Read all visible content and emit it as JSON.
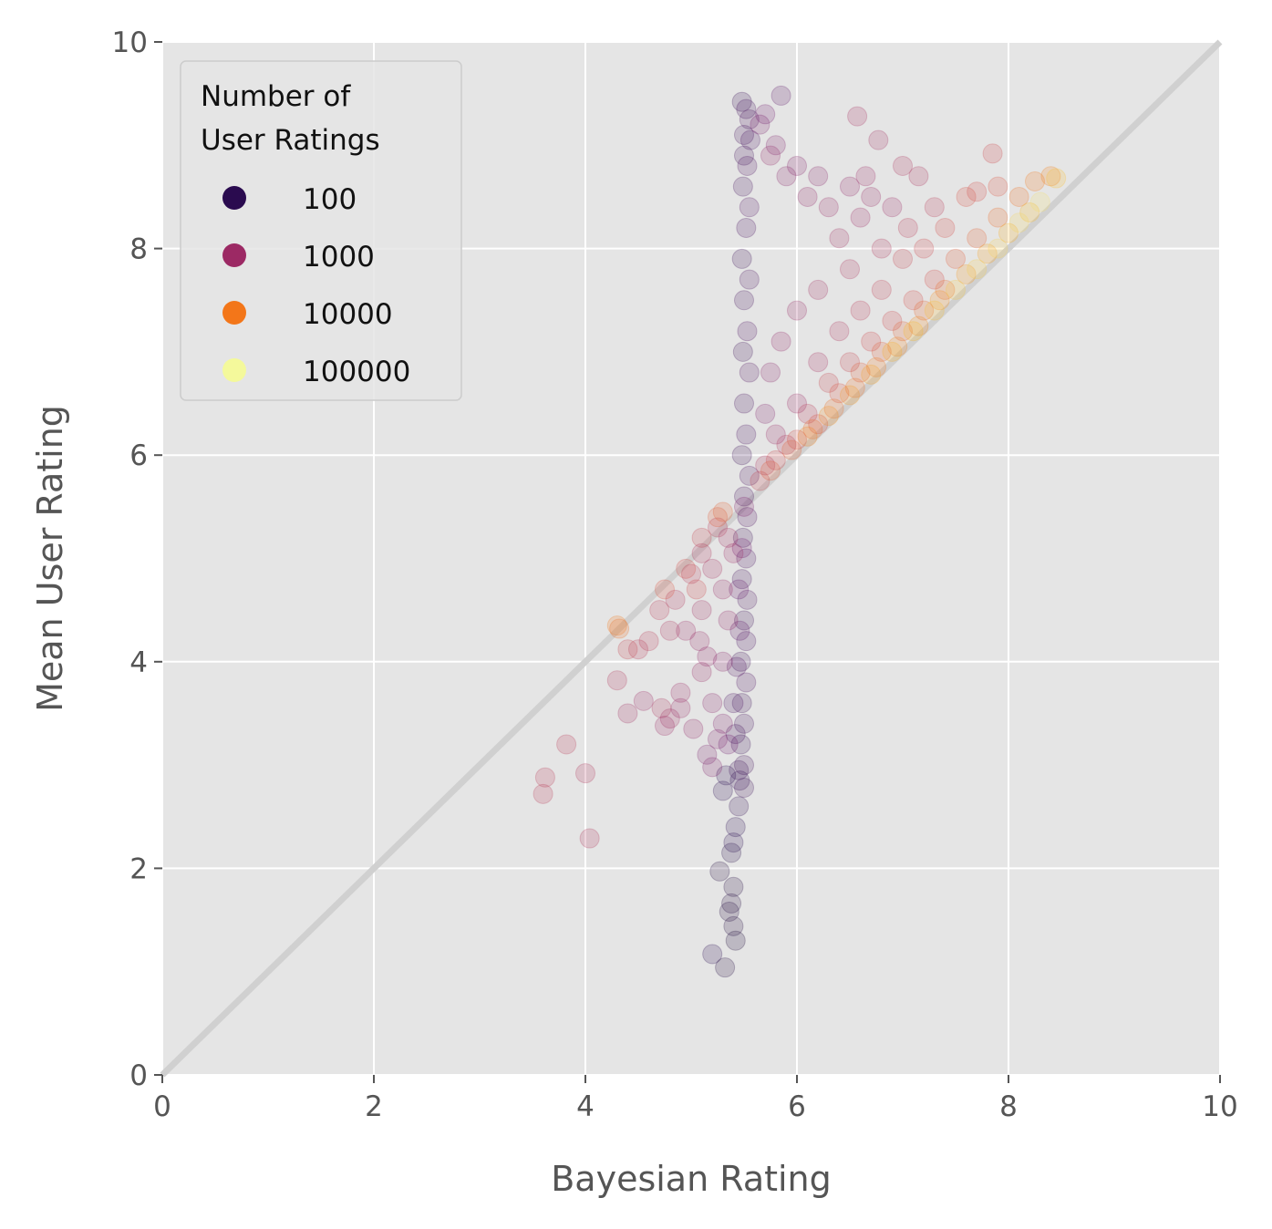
{
  "chart_data": {
    "type": "scatter",
    "title": "",
    "xlabel": "Bayesian Rating",
    "ylabel": "Mean User Rating",
    "xlim": [
      0,
      10
    ],
    "ylim": [
      0,
      10
    ],
    "xticks": [
      "0",
      "2",
      "4",
      "6",
      "8",
      "10"
    ],
    "yticks": [
      "0",
      "2",
      "4",
      "6",
      "8",
      "10"
    ],
    "grid": true,
    "reference_line": {
      "from": [
        0,
        0
      ],
      "to": [
        10,
        10
      ],
      "color": "#d0d0d0"
    },
    "legend": {
      "title_lines": [
        "Number of",
        "User Ratings"
      ],
      "placement": "top-left",
      "entries": [
        {
          "label": "100",
          "color": "#2a0b4f"
        },
        {
          "label": "1000",
          "color": "#9c2964"
        },
        {
          "label": "10000",
          "color": "#f37619"
        },
        {
          "label": "100000",
          "color": "#f4f99b"
        }
      ]
    },
    "colors": {
      "background": "#e5e5e5",
      "grid": "#ffffff",
      "tick_text": "#555555"
    },
    "colormap": [
      "#000004",
      "#2a0b4f",
      "#6a176e",
      "#9c2964",
      "#d24644",
      "#f37619",
      "#fbb61a",
      "#f4f99b"
    ],
    "point_alpha": 0.2,
    "points": [
      [
        5.48,
        9.42,
        55
      ],
      [
        5.52,
        9.35,
        70
      ],
      [
        5.55,
        9.25,
        90
      ],
      [
        5.5,
        9.1,
        70
      ],
      [
        5.56,
        9.05,
        80
      ],
      [
        5.5,
        8.9,
        65
      ],
      [
        5.53,
        8.8,
        85
      ],
      [
        5.49,
        8.6,
        70
      ],
      [
        5.55,
        8.4,
        100
      ],
      [
        5.52,
        8.2,
        80
      ],
      [
        5.48,
        7.9,
        60
      ],
      [
        5.55,
        7.7,
        90
      ],
      [
        5.5,
        7.5,
        70
      ],
      [
        5.53,
        7.2,
        85
      ],
      [
        5.49,
        7.0,
        60
      ],
      [
        5.55,
        6.8,
        95
      ],
      [
        5.5,
        6.5,
        70
      ],
      [
        5.52,
        6.2,
        80
      ],
      [
        5.48,
        6.0,
        60
      ],
      [
        5.55,
        5.8,
        90
      ],
      [
        5.5,
        5.6,
        70
      ],
      [
        5.53,
        5.4,
        85
      ],
      [
        5.49,
        5.2,
        60
      ],
      [
        5.52,
        5.0,
        80
      ],
      [
        5.48,
        4.8,
        70
      ],
      [
        5.53,
        4.6,
        90
      ],
      [
        5.5,
        4.4,
        60
      ],
      [
        5.52,
        4.2,
        80
      ],
      [
        5.47,
        4.0,
        60
      ],
      [
        5.52,
        3.8,
        85
      ],
      [
        5.48,
        3.6,
        60
      ],
      [
        5.5,
        3.4,
        70
      ],
      [
        5.47,
        3.2,
        55
      ],
      [
        5.5,
        3.0,
        65
      ],
      [
        5.46,
        2.85,
        50
      ],
      [
        5.5,
        2.78,
        60
      ],
      [
        5.45,
        2.6,
        45
      ],
      [
        5.42,
        2.4,
        40
      ],
      [
        5.4,
        2.25,
        40
      ],
      [
        5.38,
        2.15,
        35
      ],
      [
        5.27,
        1.97,
        30
      ],
      [
        5.4,
        1.82,
        30
      ],
      [
        5.38,
        1.66,
        30
      ],
      [
        5.36,
        1.58,
        30
      ],
      [
        5.4,
        1.44,
        30
      ],
      [
        5.42,
        1.3,
        25
      ],
      [
        5.2,
        1.17,
        40
      ],
      [
        5.32,
        1.04,
        30
      ],
      [
        5.3,
        2.75,
        40
      ],
      [
        5.33,
        2.9,
        40
      ],
      [
        5.45,
        2.95,
        60
      ],
      [
        5.42,
        3.3,
        70
      ],
      [
        5.4,
        3.6,
        80
      ],
      [
        5.43,
        3.95,
        100
      ],
      [
        5.46,
        4.3,
        120
      ],
      [
        5.45,
        4.7,
        150
      ],
      [
        5.48,
        5.1,
        200
      ],
      [
        5.5,
        5.5,
        300
      ],
      [
        5.7,
        9.3,
        200
      ],
      [
        5.85,
        9.48,
        120
      ],
      [
        5.65,
        9.2,
        250
      ],
      [
        5.8,
        9.0,
        300
      ],
      [
        5.75,
        8.9,
        500
      ],
      [
        5.9,
        8.7,
        400
      ],
      [
        6.0,
        8.8,
        350
      ],
      [
        6.2,
        8.7,
        400
      ],
      [
        6.1,
        8.5,
        500
      ],
      [
        6.3,
        8.4,
        600
      ],
      [
        6.5,
        8.6,
        500
      ],
      [
        6.6,
        8.3,
        700
      ],
      [
        6.4,
        8.1,
        800
      ],
      [
        6.7,
        8.5,
        600
      ],
      [
        6.9,
        8.4,
        700
      ],
      [
        6.57,
        9.28,
        900
      ],
      [
        6.77,
        9.05,
        800
      ],
      [
        6.65,
        8.7,
        700
      ],
      [
        7.0,
        8.8,
        1000
      ],
      [
        7.15,
        8.7,
        1000
      ],
      [
        7.3,
        8.4,
        1500
      ],
      [
        7.05,
        8.2,
        1500
      ],
      [
        6.8,
        8.0,
        1200
      ],
      [
        6.5,
        7.8,
        1000
      ],
      [
        6.2,
        7.6,
        800
      ],
      [
        6.0,
        7.4,
        600
      ],
      [
        5.85,
        7.1,
        500
      ],
      [
        5.75,
        6.8,
        400
      ],
      [
        5.7,
        6.4,
        300
      ],
      [
        5.8,
        6.2,
        600
      ],
      [
        6.0,
        6.5,
        700
      ],
      [
        6.2,
        6.9,
        900
      ],
      [
        6.4,
        7.2,
        1100
      ],
      [
        6.6,
        7.4,
        1500
      ],
      [
        6.8,
        7.6,
        1800
      ],
      [
        7.0,
        7.9,
        2000
      ],
      [
        7.2,
        8.0,
        2500
      ],
      [
        7.4,
        8.2,
        3000
      ],
      [
        7.6,
        8.5,
        3500
      ],
      [
        7.85,
        8.92,
        2500
      ],
      [
        7.7,
        8.55,
        3000
      ],
      [
        7.9,
        8.6,
        4000
      ],
      [
        7.3,
        7.7,
        3000
      ],
      [
        7.1,
        7.5,
        3000
      ],
      [
        6.9,
        7.3,
        2500
      ],
      [
        6.7,
        7.1,
        2500
      ],
      [
        6.5,
        6.9,
        2000
      ],
      [
        6.3,
        6.7,
        2000
      ],
      [
        6.1,
        6.4,
        1500
      ],
      [
        5.9,
        6.1,
        1200
      ],
      [
        5.7,
        5.9,
        1000
      ],
      [
        7.5,
        7.9,
        5000
      ],
      [
        7.7,
        8.1,
        6000
      ],
      [
        7.9,
        8.3,
        8000
      ],
      [
        8.1,
        8.5,
        10000
      ],
      [
        8.25,
        8.65,
        12000
      ],
      [
        8.4,
        8.7,
        15000
      ],
      [
        7.4,
        7.6,
        8000
      ],
      [
        7.2,
        7.4,
        7000
      ],
      [
        7.0,
        7.2,
        6000
      ],
      [
        6.8,
        7.0,
        5000
      ],
      [
        6.6,
        6.8,
        5000
      ],
      [
        6.4,
        6.6,
        4000
      ],
      [
        6.2,
        6.3,
        3500
      ],
      [
        6.0,
        6.15,
        3000
      ],
      [
        5.8,
        5.95,
        2500
      ],
      [
        5.65,
        5.75,
        2000
      ],
      [
        7.8,
        7.95,
        30000
      ],
      [
        8.0,
        8.15,
        40000
      ],
      [
        8.2,
        8.35,
        50000
      ],
      [
        8.45,
        8.68,
        60000
      ],
      [
        7.6,
        7.75,
        25000
      ],
      [
        7.35,
        7.5,
        20000
      ],
      [
        7.15,
        7.25,
        18000
      ],
      [
        6.95,
        7.05,
        15000
      ],
      [
        6.75,
        6.85,
        12000
      ],
      [
        6.55,
        6.65,
        10000
      ],
      [
        6.35,
        6.45,
        9000
      ],
      [
        6.15,
        6.25,
        8000
      ],
      [
        5.95,
        6.05,
        6000
      ],
      [
        5.75,
        5.85,
        5000
      ],
      [
        8.1,
        8.25,
        100000
      ],
      [
        8.3,
        8.45,
        120000
      ],
      [
        7.9,
        8.0,
        90000
      ],
      [
        7.7,
        7.8,
        80000
      ],
      [
        7.5,
        7.6,
        70000
      ],
      [
        7.3,
        7.4,
        60000
      ],
      [
        7.1,
        7.2,
        50000
      ],
      [
        6.9,
        7.0,
        40000
      ],
      [
        6.7,
        6.78,
        30000
      ],
      [
        6.5,
        6.58,
        25000
      ],
      [
        6.3,
        6.38,
        20000
      ],
      [
        6.1,
        6.18,
        15000
      ],
      [
        5.1,
        5.2,
        2000
      ],
      [
        5.25,
        5.3,
        1500
      ],
      [
        5.0,
        4.85,
        1500
      ],
      [
        4.95,
        4.9,
        3000
      ],
      [
        5.05,
        4.7,
        2500
      ],
      [
        4.85,
        4.6,
        1200
      ],
      [
        5.1,
        4.5,
        800
      ],
      [
        4.95,
        4.3,
        700
      ],
      [
        5.08,
        4.2,
        600
      ],
      [
        4.8,
        4.3,
        1000
      ],
      [
        4.7,
        4.5,
        1500
      ],
      [
        4.75,
        4.7,
        4000
      ],
      [
        4.6,
        4.2,
        1500
      ],
      [
        4.5,
        4.12,
        1500
      ],
      [
        4.4,
        4.12,
        2000
      ],
      [
        4.3,
        4.35,
        12000
      ],
      [
        4.32,
        4.32,
        9000
      ],
      [
        4.3,
        3.82,
        1200
      ],
      [
        4.4,
        3.5,
        800
      ],
      [
        4.55,
        3.62,
        700
      ],
      [
        4.72,
        3.55,
        1000
      ],
      [
        4.8,
        3.45,
        800
      ],
      [
        4.75,
        3.38,
        700
      ],
      [
        4.9,
        3.55,
        600
      ],
      [
        5.02,
        3.35,
        500
      ],
      [
        4.9,
        3.7,
        700
      ],
      [
        5.1,
        3.9,
        600
      ],
      [
        5.15,
        4.05,
        500
      ],
      [
        5.2,
        3.6,
        400
      ],
      [
        5.3,
        3.4,
        300
      ],
      [
        5.25,
        3.25,
        300
      ],
      [
        5.15,
        3.1,
        250
      ],
      [
        5.2,
        2.98,
        300
      ],
      [
        5.35,
        3.2,
        200
      ],
      [
        5.1,
        5.05,
        1200
      ],
      [
        5.2,
        4.9,
        900
      ],
      [
        5.3,
        4.7,
        600
      ],
      [
        5.35,
        4.4,
        500
      ],
      [
        5.3,
        4.0,
        400
      ],
      [
        5.4,
        5.05,
        700
      ],
      [
        5.35,
        5.2,
        800
      ],
      [
        5.3,
        5.45,
        6000
      ],
      [
        5.25,
        5.4,
        5000
      ],
      [
        3.62,
        2.88,
        1500
      ],
      [
        3.6,
        2.72,
        1500
      ],
      [
        3.82,
        3.2,
        1500
      ],
      [
        4.0,
        2.92,
        1200
      ],
      [
        4.04,
        2.29,
        1200
      ]
    ]
  }
}
